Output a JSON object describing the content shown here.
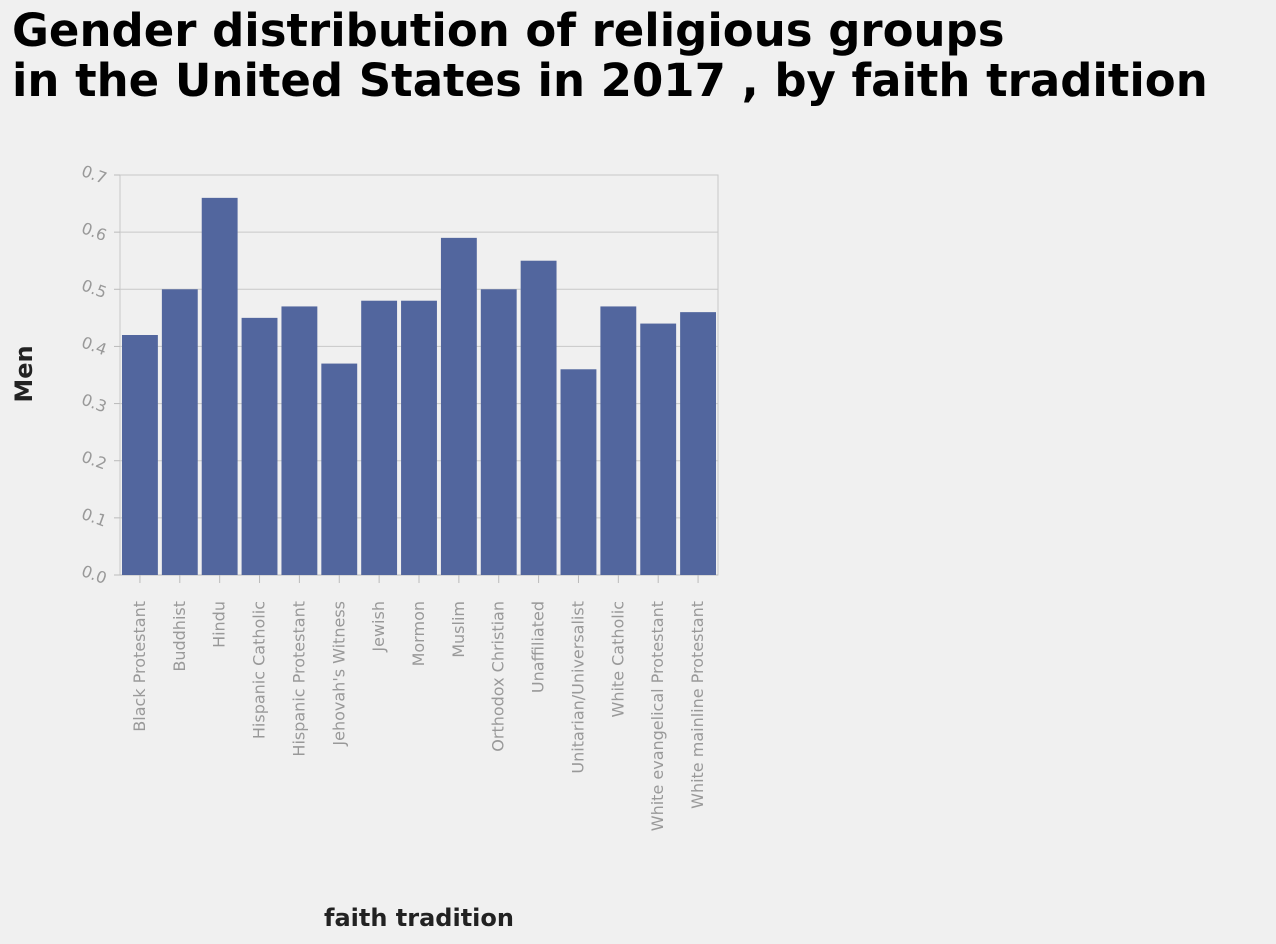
{
  "title_lines": [
    "Gender distribution of religious groups",
    "in the United States in 2017 , by faith tradition"
  ],
  "chart_data": {
    "type": "bar",
    "title": "Gender distribution of religious groups in the United States in 2017 , by faith tradition",
    "xlabel": "faith tradition",
    "ylabel": "Men",
    "categories": [
      "Black Protestant",
      "Buddhist",
      "Hindu",
      "Hispanic Catholic",
      "Hispanic Protestant",
      "Jehovah's Witness",
      "Jewish",
      "Mormon",
      "Muslim",
      "Orthodox Christian",
      "Unaffiliated",
      "Unitarian/Universalist",
      "White Catholic",
      "White evangelical Protestant",
      "White mainline Protestant"
    ],
    "values": [
      0.42,
      0.5,
      0.66,
      0.45,
      0.47,
      0.37,
      0.48,
      0.48,
      0.59,
      0.5,
      0.55,
      0.36,
      0.47,
      0.44,
      0.46
    ],
    "yticks": [
      "0.0",
      "0.1",
      "0.2",
      "0.3",
      "0.4",
      "0.5",
      "0.6",
      "0.7"
    ],
    "ylim": [
      0,
      0.7
    ],
    "grid": true,
    "bar_color": "#52669e"
  }
}
